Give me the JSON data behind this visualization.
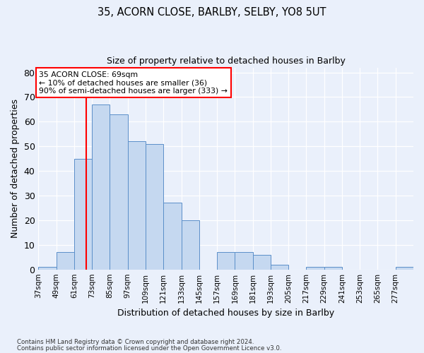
{
  "title_line1": "35, ACORN CLOSE, BARLBY, SELBY, YO8 5UT",
  "title_line2": "Size of property relative to detached houses in Barlby",
  "xlabel": "Distribution of detached houses by size in Barlby",
  "ylabel": "Number of detached properties",
  "bins": [
    37,
    49,
    61,
    73,
    85,
    97,
    109,
    121,
    133,
    145,
    157,
    169,
    181,
    193,
    205,
    217,
    229,
    241,
    253,
    265,
    277
  ],
  "values": [
    1,
    7,
    45,
    67,
    63,
    52,
    51,
    27,
    20,
    0,
    7,
    7,
    6,
    2,
    0,
    1,
    1,
    0,
    0,
    0,
    1
  ],
  "bar_color": "#c5d8f0",
  "bar_edge_color": "#5b8fc9",
  "red_line_x": 69,
  "ylim": [
    0,
    82
  ],
  "yticks": [
    0,
    10,
    20,
    30,
    40,
    50,
    60,
    70,
    80
  ],
  "annotation_line1": "35 ACORN CLOSE: 69sqm",
  "annotation_line2": "← 10% of detached houses are smaller (36)",
  "annotation_line3": "90% of semi-detached houses are larger (333) →",
  "footnote1": "Contains HM Land Registry data © Crown copyright and database right 2024.",
  "footnote2": "Contains public sector information licensed under the Open Government Licence v3.0.",
  "bg_color": "#eaf0fb",
  "plot_bg_color": "#eaf0fb",
  "annotation_box_color": "white",
  "annotation_edge_color": "red"
}
